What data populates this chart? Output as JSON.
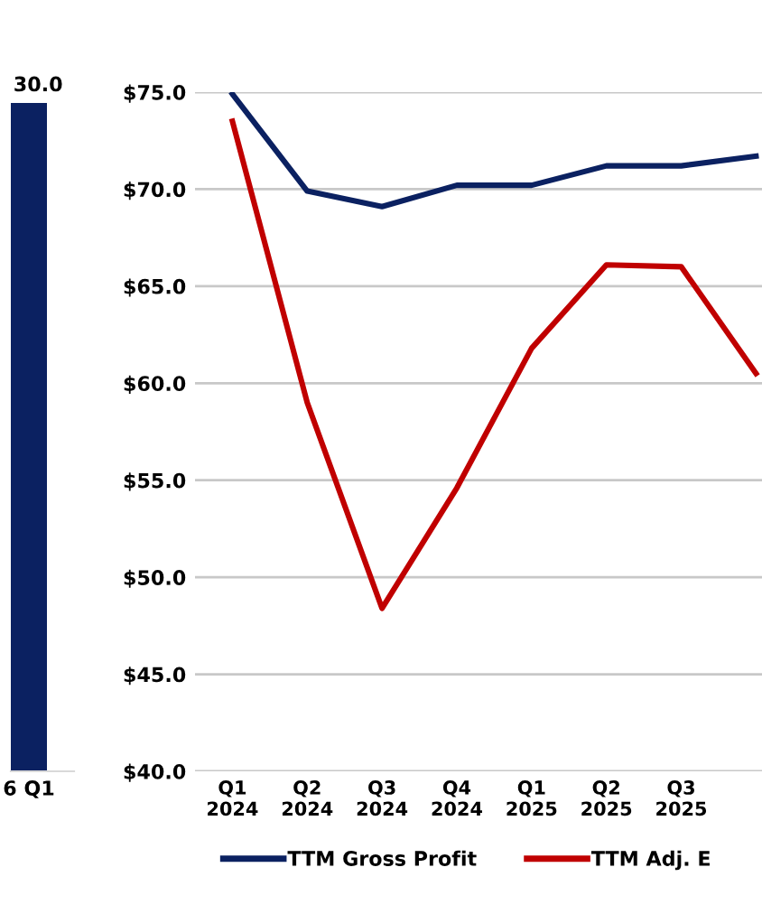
{
  "chart_data": [
    {
      "type": "bar",
      "categories": [
        "6 Q1"
      ],
      "values": [
        30.0
      ],
      "value_labels": [
        "30.0"
      ],
      "ylim": [
        0,
        30
      ],
      "color": "#0b2161"
    },
    {
      "type": "line",
      "categories": [
        "Q1\n2024",
        "Q2\n2024",
        "Q3\n2024",
        "Q4\n2024",
        "Q1\n2025",
        "Q2\n2025",
        "Q3\n2025",
        null
      ],
      "series": [
        {
          "name": "TTM Gross Profit",
          "color": "#0b2161",
          "values": [
            74.9,
            69.9,
            69.1,
            70.2,
            70.2,
            71.2,
            71.2,
            71.7
          ]
        },
        {
          "name": "TTM Adj. E",
          "color": "#c00000",
          "values": [
            73.5,
            59.0,
            48.4,
            54.6,
            61.8,
            66.1,
            66.0,
            60.5
          ]
        }
      ],
      "ylim": [
        40,
        75
      ],
      "yticks": [
        {
          "value": 40,
          "label": "$40.0"
        },
        {
          "value": 45,
          "label": "$45.0"
        },
        {
          "value": 50,
          "label": "$50.0"
        },
        {
          "value": 55,
          "label": "$55.0"
        },
        {
          "value": 60,
          "label": "$60.0"
        },
        {
          "value": 65,
          "label": "$65.0"
        },
        {
          "value": 70,
          "label": "$70.0"
        },
        {
          "value": 75,
          "label": "$75.0"
        }
      ],
      "grid": "y",
      "legend": "bottom",
      "marker": "none",
      "line_style": "solid"
    }
  ]
}
